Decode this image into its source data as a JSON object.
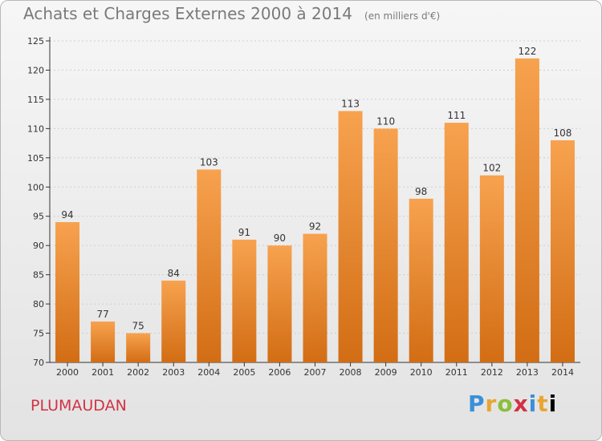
{
  "title": "Achats et Charges Externes 2000 à 2014",
  "subtitle": "(en milliers d'€)",
  "commune": "PLUMAUDAN",
  "logo": {
    "letters": [
      "P",
      "r",
      "o",
      "x",
      "i",
      "t",
      "i"
    ]
  },
  "colors": {
    "bar_top": "#f7a24f",
    "bar_bottom": "#d26d14",
    "title": "#7a7a7a",
    "commune": "#d23246",
    "grid": "#cfcfcf"
  },
  "chart_data": {
    "type": "bar",
    "title": "Achats et Charges Externes 2000 à 2014",
    "subtitle": "(en milliers d'€)",
    "categories": [
      "2000",
      "2001",
      "2002",
      "2003",
      "2004",
      "2005",
      "2006",
      "2007",
      "2008",
      "2009",
      "2010",
      "2011",
      "2012",
      "2013",
      "2014"
    ],
    "values": [
      94,
      77,
      75,
      84,
      103,
      91,
      90,
      92,
      113,
      110,
      98,
      111,
      102,
      122,
      108
    ],
    "ylim": [
      70,
      125
    ],
    "yticks": [
      70,
      75,
      80,
      85,
      90,
      95,
      100,
      105,
      110,
      115,
      120,
      125
    ],
    "grid": true,
    "xlabel": "",
    "ylabel": ""
  }
}
